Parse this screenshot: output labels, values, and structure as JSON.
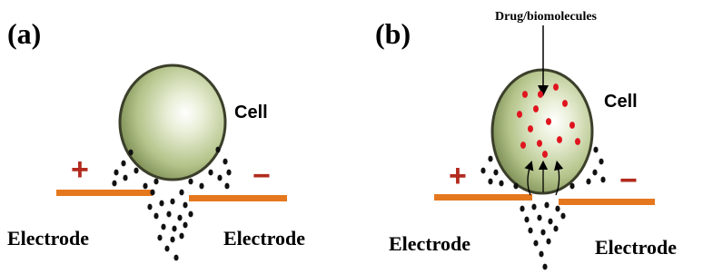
{
  "panels": [
    {
      "label": "(a)",
      "cell_label": "Cell",
      "positive": "+",
      "negative": "−",
      "left_electrode": "Electrode",
      "right_electrode": "Electrode"
    },
    {
      "label": "(b)",
      "cell_label": "Cell",
      "positive": "+",
      "negative": "−",
      "left_electrode": "Electrode",
      "right_electrode": "Electrode",
      "annotation": "Drug/biomolecules"
    }
  ]
}
